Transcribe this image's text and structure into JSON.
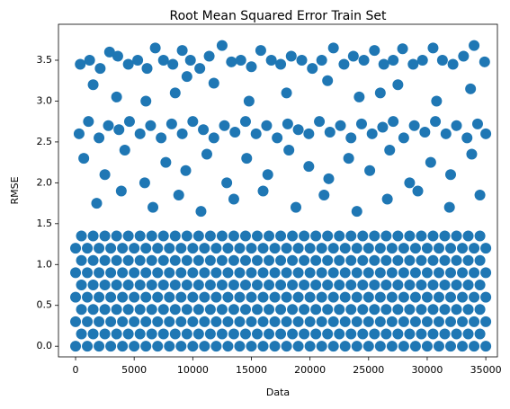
{
  "chart_data": {
    "type": "scatter",
    "title": "Root Mean Squared Error Train Set",
    "x_label": "Data",
    "y_label": "RMSE",
    "color": "#1f77b4",
    "xlim": [
      -1460,
      35990
    ],
    "ylim": [
      -0.13,
      3.94
    ],
    "xticks": [
      0,
      5000,
      10000,
      15000,
      20000,
      25000,
      30000,
      35000
    ],
    "yticks": [
      {
        "value": 0,
        "label": "0.0"
      },
      0.5,
      {
        "value": 1,
        "label": "1.0"
      },
      1.5,
      {
        "value": 2,
        "label": "2.0"
      },
      2.5,
      {
        "value": 3,
        "label": "3.0"
      },
      3.5
    ],
    "x": [
      0,
      1000,
      2000,
      3000,
      4000,
      5000,
      6000,
      7000,
      8000,
      9000,
      10000,
      11000,
      12000,
      13000,
      14000,
      15000,
      16000,
      17000,
      18000,
      19000,
      20000,
      21000,
      22000,
      23000,
      24000,
      25000,
      26000,
      27000,
      28000,
      29000,
      30000,
      31000,
      32000,
      33000,
      34000,
      35000,
      500,
      1500,
      2500,
      3500,
      4500,
      5500,
      6500,
      7500,
      8500,
      9500,
      10500,
      11500,
      12500,
      13500,
      14500,
      15500,
      16500,
      17500,
      18500,
      19500,
      20500,
      21500,
      22500,
      23500,
      24500,
      25500,
      26500,
      27500,
      28500,
      29500,
      30500,
      31500,
      32500,
      33500,
      34500,
      0,
      1000,
      2000,
      3000,
      4000,
      5000,
      6000,
      7000,
      8000,
      9000,
      10000,
      11000,
      12000,
      13000,
      14000,
      15000,
      16000,
      17000,
      18000,
      19000,
      20000,
      21000,
      22000,
      23000,
      24000,
      25000,
      26000,
      27000,
      28000,
      29000,
      30000,
      31000,
      32000,
      33000,
      34000,
      35000,
      500,
      1500,
      2500,
      3500,
      4500,
      5500,
      6500,
      7500,
      8500,
      9500,
      10500,
      11500,
      12500,
      13500,
      14500,
      15500,
      16500,
      17500,
      18500,
      19500,
      20500,
      21500,
      22500,
      23500,
      24500,
      25500,
      26500,
      27500,
      28500,
      29500,
      30500,
      31500,
      32500,
      33500,
      34500,
      0,
      1000,
      2000,
      3000,
      4000,
      5000,
      6000,
      7000,
      8000,
      9000,
      10000,
      11000,
      12000,
      13000,
      14000,
      15000,
      16000,
      17000,
      18000,
      19000,
      20000,
      21000,
      22000,
      23000,
      24000,
      25000,
      26000,
      27000,
      28000,
      29000,
      30000,
      31000,
      32000,
      33000,
      34000,
      35000,
      500,
      1500,
      2500,
      3500,
      4500,
      5500,
      6500,
      7500,
      8500,
      9500,
      10500,
      11500,
      12500,
      13500,
      14500,
      15500,
      16500,
      17500,
      18500,
      19500,
      20500,
      21500,
      22500,
      23500,
      24500,
      25500,
      26500,
      27500,
      28500,
      29500,
      30500,
      31500,
      32500,
      33500,
      34500,
      0,
      1000,
      2000,
      3000,
      4000,
      5000,
      6000,
      7000,
      8000,
      9000,
      10000,
      11000,
      12000,
      13000,
      14000,
      15000,
      16000,
      17000,
      18000,
      19000,
      20000,
      21000,
      22000,
      23000,
      24000,
      25000,
      26000,
      27000,
      28000,
      29000,
      30000,
      31000,
      32000,
      33000,
      34000,
      35000,
      500,
      1500,
      2500,
      3500,
      4500,
      5500,
      6500,
      7500,
      8500,
      9500,
      10500,
      11500,
      12500,
      13500,
      14500,
      15500,
      16500,
      17500,
      18500,
      19500,
      20500,
      21500,
      22500,
      23500,
      24500,
      25500,
      26500,
      27500,
      28500,
      29500,
      30500,
      31500,
      32500,
      33500,
      34500,
      0,
      1000,
      2000,
      3000,
      4000,
      5000,
      6000,
      7000,
      8000,
      9000,
      10000,
      11000,
      12000,
      13000,
      14000,
      15000,
      16000,
      17000,
      18000,
      19000,
      20000,
      21000,
      22000,
      23000,
      24000,
      25000,
      26000,
      27000,
      28000,
      29000,
      30000,
      31000,
      32000,
      33000,
      34000,
      35000,
      500,
      1500,
      2500,
      3500,
      4500,
      5500,
      6500,
      7500,
      8500,
      9500,
      10500,
      11500,
      12500,
      13500,
      14500,
      15500,
      16500,
      17500,
      18500,
      19500,
      20500,
      21500,
      22500,
      23500,
      24500,
      25500,
      26500,
      27500,
      28500,
      29500,
      30500,
      31500,
      32500,
      33500,
      34500,
      400,
      1200,
      2100,
      2900,
      3600,
      4500,
      5300,
      6100,
      6800,
      7500,
      8300,
      9100,
      9800,
      10600,
      11400,
      12500,
      13300,
      14100,
      15000,
      15800,
      16700,
      17500,
      18400,
      19300,
      20200,
      21000,
      22000,
      22900,
      23700,
      24600,
      25500,
      26300,
      27100,
      27900,
      28800,
      29600,
      30500,
      31300,
      32200,
      33100,
      34000,
      34900,
      1500,
      3500,
      6000,
      8500,
      11800,
      14800,
      18000,
      21500,
      24200,
      27500,
      30800,
      33700,
      9500,
      26000,
      300,
      1100,
      2000,
      2800,
      3700,
      4600,
      5500,
      6400,
      7300,
      8200,
      9100,
      10000,
      10900,
      11800,
      12700,
      13600,
      14500,
      15400,
      16300,
      17200,
      18100,
      19000,
      19900,
      20800,
      21700,
      22600,
      23500,
      24400,
      25300,
      26200,
      27100,
      28000,
      28900,
      29800,
      30700,
      31600,
      32500,
      33400,
      34300,
      35000,
      700,
      2500,
      4200,
      5900,
      7700,
      9400,
      11200,
      12900,
      14600,
      16400,
      18200,
      19900,
      21600,
      23300,
      25100,
      26800,
      28500,
      30300,
      32000,
      33800,
      1800,
      3900,
      6600,
      8800,
      10700,
      13500,
      16000,
      18800,
      21200,
      24000,
      26600,
      29200,
      31900,
      34500
    ],
    "values": [
      0,
      0,
      0,
      0,
      0,
      0,
      0,
      0,
      0,
      0,
      0,
      0,
      0,
      0,
      0,
      0,
      0,
      0,
      0,
      0,
      0,
      0,
      0,
      0,
      0,
      0,
      0,
      0,
      0,
      0,
      0,
      0,
      0,
      0,
      0,
      0,
      0.15,
      0.15,
      0.15,
      0.15,
      0.15,
      0.15,
      0.15,
      0.15,
      0.15,
      0.15,
      0.15,
      0.15,
      0.15,
      0.15,
      0.15,
      0.15,
      0.15,
      0.15,
      0.15,
      0.15,
      0.15,
      0.15,
      0.15,
      0.15,
      0.15,
      0.15,
      0.15,
      0.15,
      0.15,
      0.15,
      0.15,
      0.15,
      0.15,
      0.15,
      0.15,
      0.3,
      0.3,
      0.3,
      0.3,
      0.3,
      0.3,
      0.3,
      0.3,
      0.3,
      0.3,
      0.3,
      0.3,
      0.3,
      0.3,
      0.3,
      0.3,
      0.3,
      0.3,
      0.3,
      0.3,
      0.3,
      0.3,
      0.3,
      0.3,
      0.3,
      0.3,
      0.3,
      0.3,
      0.3,
      0.3,
      0.3,
      0.3,
      0.3,
      0.3,
      0.3,
      0.3,
      0.45,
      0.45,
      0.45,
      0.45,
      0.45,
      0.45,
      0.45,
      0.45,
      0.45,
      0.45,
      0.45,
      0.45,
      0.45,
      0.45,
      0.45,
      0.45,
      0.45,
      0.45,
      0.45,
      0.45,
      0.45,
      0.45,
      0.45,
      0.45,
      0.45,
      0.45,
      0.45,
      0.45,
      0.45,
      0.45,
      0.45,
      0.45,
      0.45,
      0.45,
      0.45,
      0.6,
      0.6,
      0.6,
      0.6,
      0.6,
      0.6,
      0.6,
      0.6,
      0.6,
      0.6,
      0.6,
      0.6,
      0.6,
      0.6,
      0.6,
      0.6,
      0.6,
      0.6,
      0.6,
      0.6,
      0.6,
      0.6,
      0.6,
      0.6,
      0.6,
      0.6,
      0.6,
      0.6,
      0.6,
      0.6,
      0.6,
      0.6,
      0.6,
      0.6,
      0.6,
      0.6,
      0.75,
      0.75,
      0.75,
      0.75,
      0.75,
      0.75,
      0.75,
      0.75,
      0.75,
      0.75,
      0.75,
      0.75,
      0.75,
      0.75,
      0.75,
      0.75,
      0.75,
      0.75,
      0.75,
      0.75,
      0.75,
      0.75,
      0.75,
      0.75,
      0.75,
      0.75,
      0.75,
      0.75,
      0.75,
      0.75,
      0.75,
      0.75,
      0.75,
      0.75,
      0.75,
      0.9,
      0.9,
      0.9,
      0.9,
      0.9,
      0.9,
      0.9,
      0.9,
      0.9,
      0.9,
      0.9,
      0.9,
      0.9,
      0.9,
      0.9,
      0.9,
      0.9,
      0.9,
      0.9,
      0.9,
      0.9,
      0.9,
      0.9,
      0.9,
      0.9,
      0.9,
      0.9,
      0.9,
      0.9,
      0.9,
      0.9,
      0.9,
      0.9,
      0.9,
      0.9,
      0.9,
      1.05,
      1.05,
      1.05,
      1.05,
      1.05,
      1.05,
      1.05,
      1.05,
      1.05,
      1.05,
      1.05,
      1.05,
      1.05,
      1.05,
      1.05,
      1.05,
      1.05,
      1.05,
      1.05,
      1.05,
      1.05,
      1.05,
      1.05,
      1.05,
      1.05,
      1.05,
      1.05,
      1.05,
      1.05,
      1.05,
      1.05,
      1.05,
      1.05,
      1.05,
      1.05,
      1.2,
      1.2,
      1.2,
      1.2,
      1.2,
      1.2,
      1.2,
      1.2,
      1.2,
      1.2,
      1.2,
      1.2,
      1.2,
      1.2,
      1.2,
      1.2,
      1.2,
      1.2,
      1.2,
      1.2,
      1.2,
      1.2,
      1.2,
      1.2,
      1.2,
      1.2,
      1.2,
      1.2,
      1.2,
      1.2,
      1.2,
      1.2,
      1.2,
      1.2,
      1.2,
      1.2,
      1.35,
      1.35,
      1.35,
      1.35,
      1.35,
      1.35,
      1.35,
      1.35,
      1.35,
      1.35,
      1.35,
      1.35,
      1.35,
      1.35,
      1.35,
      1.35,
      1.35,
      1.35,
      1.35,
      1.35,
      1.35,
      1.35,
      1.35,
      1.35,
      1.35,
      1.35,
      1.35,
      1.35,
      1.35,
      1.35,
      1.35,
      1.35,
      1.35,
      1.35,
      1.35,
      3.45,
      3.5,
      3.4,
      3.6,
      3.55,
      3.45,
      3.5,
      3.4,
      3.65,
      3.5,
      3.45,
      3.62,
      3.5,
      3.4,
      3.55,
      3.68,
      3.48,
      3.5,
      3.42,
      3.62,
      3.5,
      3.45,
      3.55,
      3.5,
      3.4,
      3.5,
      3.65,
      3.45,
      3.55,
      3.5,
      3.62,
      3.45,
      3.5,
      3.64,
      3.45,
      3.5,
      3.65,
      3.5,
      3.45,
      3.55,
      3.68,
      3.48,
      3.2,
      3.05,
      3.0,
      3.1,
      3.22,
      3.0,
      3.1,
      3.25,
      3.05,
      3.2,
      3.0,
      3.15,
      3.3,
      3.1,
      2.6,
      2.75,
      2.55,
      2.7,
      2.65,
      2.75,
      2.6,
      2.7,
      2.55,
      2.72,
      2.6,
      2.75,
      2.65,
      2.55,
      2.7,
      2.62,
      2.75,
      2.6,
      2.7,
      2.55,
      2.72,
      2.65,
      2.6,
      2.75,
      2.62,
      2.7,
      2.55,
      2.72,
      2.6,
      2.68,
      2.75,
      2.55,
      2.7,
      2.62,
      2.75,
      2.6,
      2.7,
      2.55,
      2.72,
      2.6,
      2.3,
      2.1,
      2.4,
      2.0,
      2.25,
      2.15,
      2.35,
      2.0,
      2.3,
      2.1,
      2.4,
      2.2,
      2.05,
      2.3,
      2.15,
      2.4,
      2.0,
      2.25,
      2.1,
      2.35,
      1.75,
      1.9,
      1.7,
      1.85,
      1.65,
      1.8,
      1.9,
      1.7,
      1.85,
      1.65,
      1.8,
      1.9,
      1.7,
      1.85
    ]
  }
}
